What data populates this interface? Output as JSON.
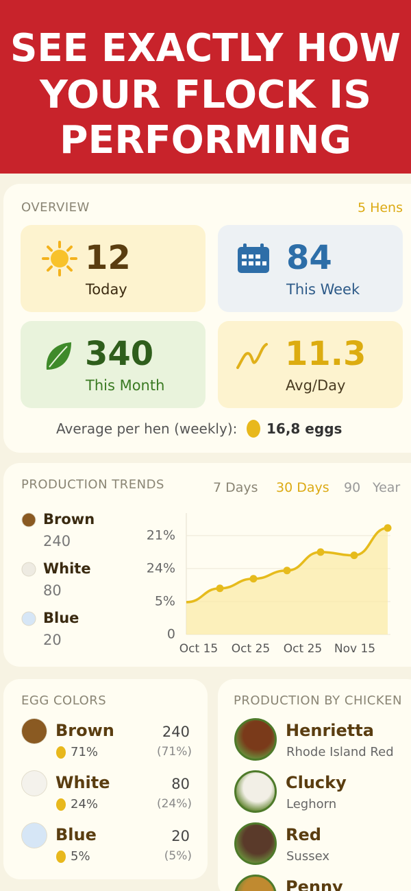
{
  "header": {
    "title_lines": [
      "SEE EXACTLY HOW",
      "YOUR FLOCK IS",
      "PERFORMING"
    ]
  },
  "overview": {
    "title": "OVERVIEW",
    "hens": "5 Hens",
    "stats": [
      {
        "value": 12,
        "label": "Today"
      },
      {
        "value": 84,
        "label": "This Week"
      },
      {
        "value": 340,
        "label": "This Month"
      },
      {
        "value": 11.3,
        "label": "Avg/Day"
      }
    ],
    "average_label": "Average per hen (weekly):",
    "average_value": "16,8 eggs"
  },
  "trends": {
    "title": "PRODUCTION TRENDS",
    "ranges": [
      "7 Days",
      "30 Days",
      "90",
      "Year"
    ],
    "legend": [
      {
        "name": "Brown",
        "value": 240,
        "color": "#8a5a22"
      },
      {
        "name": "White",
        "value": 80,
        "color": "#eeebe2"
      },
      {
        "name": "Blue",
        "value": 20,
        "color": "#d6e6f6"
      }
    ],
    "chart_data": {
      "type": "line",
      "values": [
        9.8,
        14,
        16.9,
        19.4,
        25,
        24,
        32.3
      ],
      "color": "#e6bb1c",
      "ylim": [
        0,
        36
      ],
      "yticks": [
        0,
        {
          "value": 10,
          "label": "5%"
        },
        {
          "value": 20,
          "label": "24%"
        },
        {
          "value": 30,
          "label": "21%"
        }
      ],
      "xtick_labels": [
        "Oct 15",
        "Oct 25",
        "Oct 25",
        "Nov 15"
      ],
      "grid": true
    }
  },
  "egg_colors": {
    "title": "EGG COLORS",
    "items": [
      {
        "name": "Brown",
        "percent": "71%",
        "count": 240,
        "share": "(71%)",
        "color": "#8a5a22"
      },
      {
        "name": "White",
        "percent": "24%",
        "count": 80,
        "share": "(24%)",
        "color": "#f4f2ec"
      },
      {
        "name": "Blue",
        "percent": "5%",
        "count": 20,
        "share": "(5%)",
        "color": "#d6e6f6"
      }
    ]
  },
  "chickens": {
    "title": "PRODUCTION BY CHICKEN",
    "items": [
      {
        "name": "Henrietta",
        "breed": "Rhode Island Red",
        "color": "#7a3a1a"
      },
      {
        "name": "Clucky",
        "breed": "Leghorn",
        "color": "#f2efe6"
      },
      {
        "name": "Red",
        "breed": "Sussex",
        "color": "#5a3a2a"
      },
      {
        "name": "Penny",
        "color": "#c08a30"
      }
    ]
  }
}
